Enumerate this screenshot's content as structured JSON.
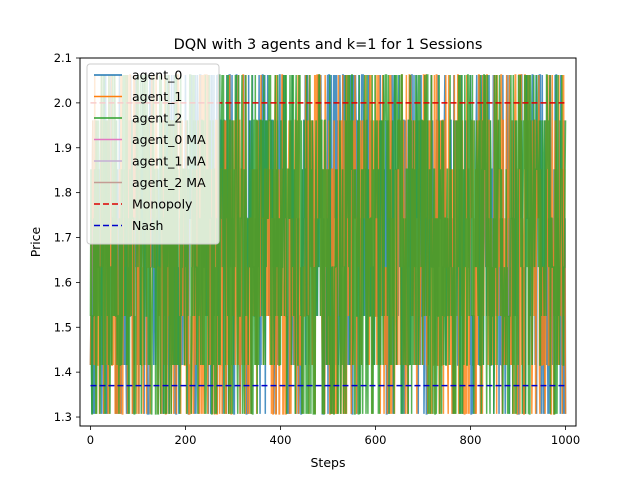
{
  "chart_data": {
    "type": "line",
    "title": "DQN with 3 agents and k=1 for 1 Sessions",
    "xlabel": "Steps",
    "ylabel": "Price",
    "xlim": [
      -22,
      1022
    ],
    "ylim": [
      1.28,
      2.1
    ],
    "xticks": [
      "0",
      "200",
      "400",
      "600",
      "800",
      "1000"
    ],
    "yticks": [
      "1.3",
      "1.4",
      "1.5",
      "1.6",
      "1.7",
      "1.8",
      "1.9",
      "2.0",
      "2.1"
    ],
    "price_levels": [
      1.307,
      1.416,
      1.525,
      1.634,
      1.743,
      1.852,
      1.961,
      2.062
    ],
    "series": [
      {
        "name": "agent_0",
        "color": "#1f77b4",
        "seed": 11,
        "steps": 1000
      },
      {
        "name": "agent_1",
        "color": "#ff7f0e",
        "seed": 23,
        "steps": 1000
      },
      {
        "name": "agent_2",
        "color": "#2ca02c",
        "seed": 37,
        "steps": 1000
      }
    ],
    "ma_series": [
      {
        "name": "agent_0 MA",
        "color": "#e377c2"
      },
      {
        "name": "agent_1 MA",
        "color": "#c5b0d5"
      },
      {
        "name": "agent_2 MA",
        "color": "#c49c94"
      }
    ],
    "reference_lines": [
      {
        "name": "Monopoly",
        "value": 2.0,
        "color": "#dd0000",
        "style": "dashed"
      },
      {
        "name": "Nash",
        "value": 1.37,
        "color": "#0000cc",
        "style": "dashed"
      }
    ],
    "legend_position": "top-left",
    "grid": false
  }
}
